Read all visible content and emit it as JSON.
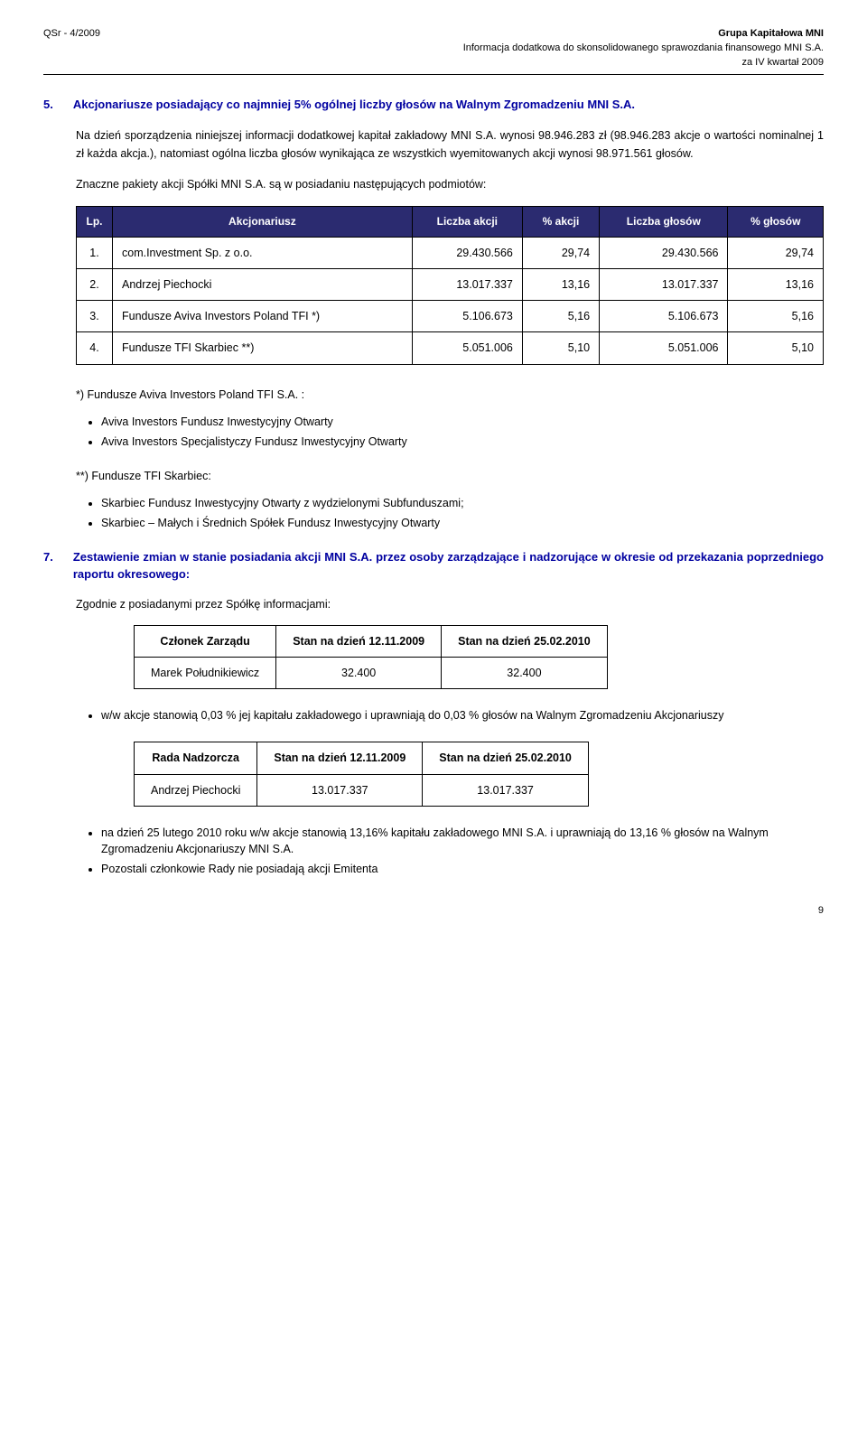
{
  "header": {
    "left": "QSr - 4/2009",
    "right1": "Grupa Kapitałowa MNI",
    "right2": "Informacja dodatkowa do skonsolidowanego sprawozdania finansowego MNI S.A.",
    "right3": "za IV kwartał 2009"
  },
  "sec5": {
    "num": "5.",
    "title": "Akcjonariusze posiadający co najmniej 5% ogólnej liczby głosów na Walnym Zgromadzeniu MNI S.A.",
    "p1": "Na dzień sporządzenia niniejszej informacji dodatkowej kapitał zakładowy MNI S.A. wynosi 98.946.283 zł (98.946.283 akcje o wartości nominalnej 1 zł każda akcja.), natomiast ogólna liczba głosów wynikająca ze wszystkich wyemitowanych akcji wynosi 98.971.561 głosów.",
    "p2": "Znaczne pakiety akcji Spółki MNI S.A. są w posiadaniu następujących podmiotów:",
    "table": {
      "columns": [
        "Lp.",
        "Akcjonariusz",
        "Liczba akcji",
        "% akcji",
        "Liczba głosów",
        "% głosów"
      ],
      "rows": [
        [
          "1.",
          "com.Investment Sp. z o.o.",
          "29.430.566",
          "29,74",
          "29.430.566",
          "29,74"
        ],
        [
          "2.",
          "Andrzej Piechocki",
          "13.017.337",
          "13,16",
          "13.017.337",
          "13,16"
        ],
        [
          "3.",
          "Fundusze  Aviva Investors Poland TFI  *)",
          "5.106.673",
          "5,16",
          "5.106.673",
          "5,16"
        ],
        [
          "4.",
          "Fundusze TFI Skarbiec **)",
          "5.051.006",
          "5,10",
          "5.051.006",
          "5,10"
        ]
      ]
    },
    "fn1_head": "*) Fundusze  Aviva Investors Poland TFI S.A. :",
    "fn1_items": [
      "Aviva Investors Fundusz Inwestycyjny Otwarty",
      "Aviva Investors Specjalistyczy Fundusz Inwestycyjny Otwarty"
    ],
    "fn2_head": "**) Fundusze TFI Skarbiec:",
    "fn2_items": [
      "Skarbiec Fundusz Inwestycyjny Otwarty z wydzielonymi Subfunduszami;",
      "Skarbiec – Małych i Średnich Spółek Fundusz Inwestycyjny Otwarty"
    ]
  },
  "sec7": {
    "num": "7.",
    "title": "Zestawienie zmian w stanie posiadania akcji MNI S.A. przez osoby zarządzające i nadzorujące w okresie od przekazania poprzedniego raportu okresowego:",
    "lead": "Zgodnie z posiadanymi przez Spółkę informacjami:",
    "table1": {
      "columns": [
        "Członek Zarządu",
        "Stan na dzień 12.11.2009",
        "Stan na dzień 25.02.2010"
      ],
      "rows": [
        [
          "Marek Południkiewicz",
          "32.400",
          "32.400"
        ]
      ]
    },
    "bullet1": "w/w akcje stanowią 0,03 % jej kapitału zakładowego i uprawniają do 0,03 % głosów na Walnym Zgromadzeniu Akcjonariuszy",
    "table2": {
      "columns": [
        "Rada Nadzorcza",
        "Stan na dzień 12.11.2009",
        "Stan na dzień 25.02.2010"
      ],
      "rows": [
        [
          "Andrzej Piechocki",
          "13.017.337",
          "13.017.337"
        ]
      ]
    },
    "bullets2": [
      "na dzień 25 lutego 2010 roku w/w akcje stanowią 13,16% kapitału zakładowego MNI S.A. i uprawniają do 13,16 % głosów na Walnym Zgromadzeniu Akcjonariuszy MNI S.A.",
      "Pozostali członkowie Rady nie posiadają akcji Emitenta"
    ]
  },
  "page_number": "9"
}
